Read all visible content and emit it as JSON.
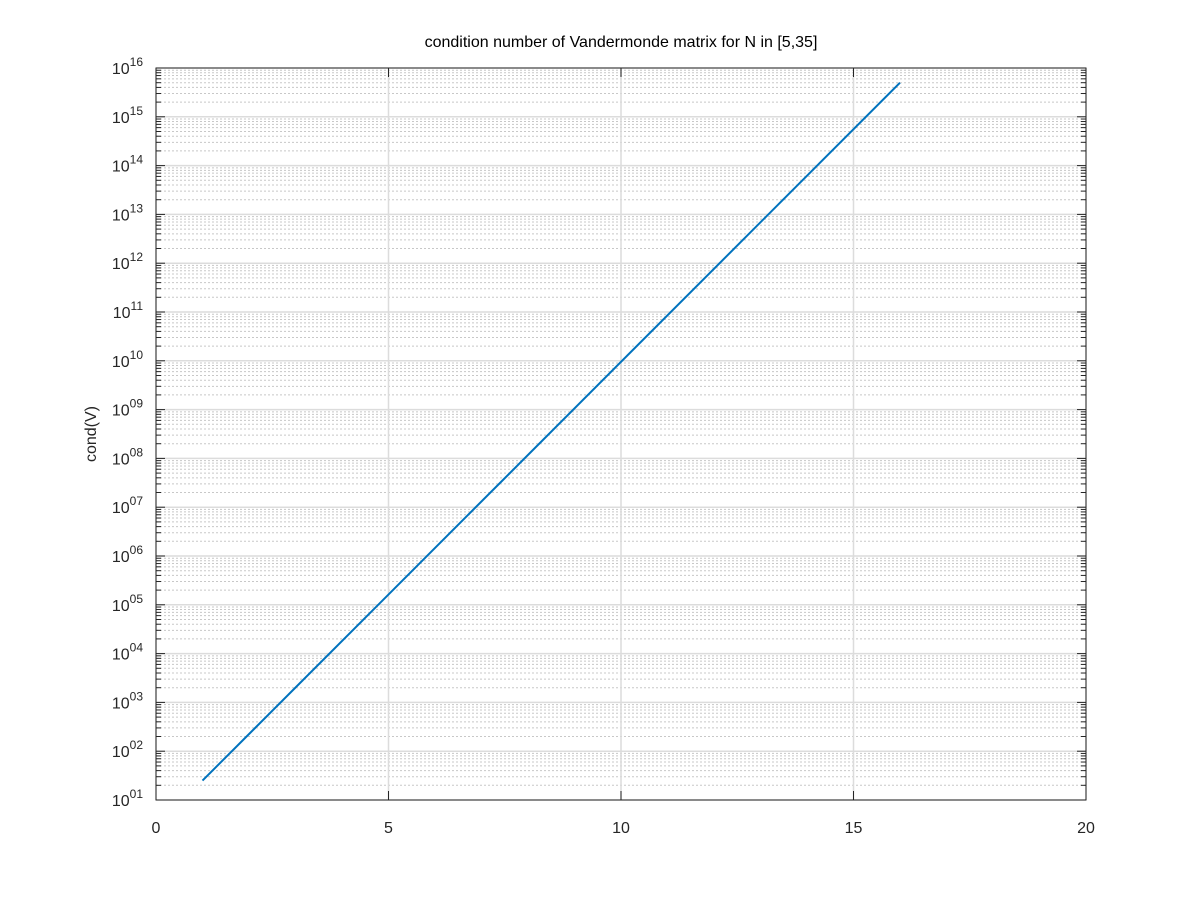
{
  "chart_data": {
    "type": "line",
    "title": "condition number of Vandermonde matrix for N in [5,35]",
    "xlabel": "",
    "ylabel": "cond(V)",
    "xlim": [
      0,
      20
    ],
    "ylim": [
      10,
      1e+16
    ],
    "yscale": "log",
    "grid": true,
    "minor_grid": true,
    "x_ticks": [
      0,
      5,
      10,
      15,
      20
    ],
    "x_tick_labels": [
      "0",
      "5",
      "10",
      "15",
      "20"
    ],
    "y_ticks": [
      10.0,
      100.0,
      1000.0,
      10000.0,
      100000.0,
      1000000.0,
      10000000.0,
      100000000.0,
      1000000000.0,
      10000000000.0,
      100000000000.0,
      1000000000000.0,
      10000000000000.0,
      100000000000000.0,
      1000000000000000.0,
      1e+16
    ],
    "y_tick_exponents": [
      "01",
      "02",
      "03",
      "04",
      "05",
      "06",
      "07",
      "08",
      "09",
      "10",
      "11",
      "12",
      "13",
      "14",
      "15",
      "16"
    ],
    "y_tick_base": "10",
    "series": [
      {
        "color": "#0072BD",
        "x": [
          1,
          16
        ],
        "y": [
          25,
          5000000000000000.0
        ]
      }
    ]
  }
}
